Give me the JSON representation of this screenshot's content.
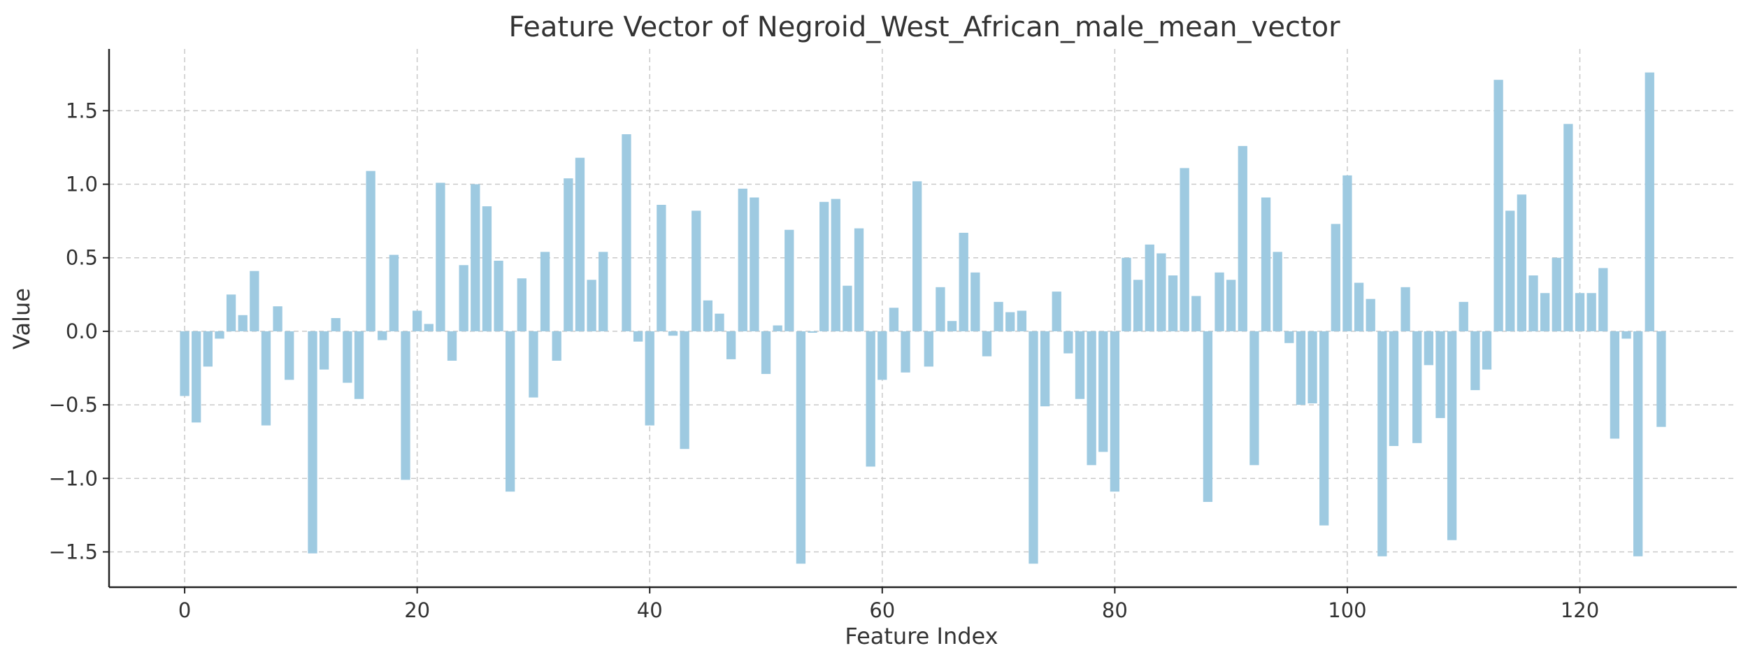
{
  "chart_data": {
    "type": "bar",
    "title": "Feature Vector of Negroid_West_African_male_mean_vector",
    "xlabel": "Feature Index",
    "ylabel": "Value",
    "xlim": [
      -6.5,
      133.5
    ],
    "ylim": [
      -1.74,
      1.92
    ],
    "xticks": [
      0,
      20,
      40,
      60,
      80,
      100,
      120
    ],
    "yticks": [
      -1.5,
      -1.0,
      -0.5,
      0.0,
      0.5,
      1.0,
      1.5
    ],
    "xtick_labels": [
      "0",
      "20",
      "40",
      "60",
      "80",
      "100",
      "120"
    ],
    "ytick_labels": [
      "−1.5",
      "−1.0",
      "−0.5",
      "0.0",
      "0.5",
      "1.0",
      "1.5"
    ],
    "grid": true,
    "bar_color": "#9ecae1",
    "x": [
      0,
      1,
      2,
      3,
      4,
      5,
      6,
      7,
      8,
      9,
      10,
      11,
      12,
      13,
      14,
      15,
      16,
      17,
      18,
      19,
      20,
      21,
      22,
      23,
      24,
      25,
      26,
      27,
      28,
      29,
      30,
      31,
      32,
      33,
      34,
      35,
      36,
      37,
      38,
      39,
      40,
      41,
      42,
      43,
      44,
      45,
      46,
      47,
      48,
      49,
      50,
      51,
      52,
      53,
      54,
      55,
      56,
      57,
      58,
      59,
      60,
      61,
      62,
      63,
      64,
      65,
      66,
      67,
      68,
      69,
      70,
      71,
      72,
      73,
      74,
      75,
      76,
      77,
      78,
      79,
      80,
      81,
      82,
      83,
      84,
      85,
      86,
      87,
      88,
      89,
      90,
      91,
      92,
      93,
      94,
      95,
      96,
      97,
      98,
      99,
      100,
      101,
      102,
      103,
      104,
      105,
      106,
      107,
      108,
      109,
      110,
      111,
      112,
      113,
      114,
      115,
      116,
      117,
      118,
      119,
      120,
      121,
      122,
      123,
      124,
      125,
      126,
      127
    ],
    "values": [
      -0.44,
      -0.62,
      -0.24,
      -0.05,
      0.25,
      0.11,
      0.41,
      -0.64,
      0.17,
      -0.33,
      0.0,
      -1.51,
      -0.26,
      0.09,
      -0.35,
      -0.46,
      1.09,
      -0.06,
      0.52,
      -1.01,
      0.14,
      0.05,
      1.01,
      -0.2,
      0.45,
      1.0,
      0.85,
      0.48,
      -1.09,
      0.36,
      -0.45,
      0.54,
      -0.2,
      1.04,
      1.18,
      0.35,
      0.54,
      0.0,
      1.34,
      -0.07,
      -0.64,
      0.86,
      -0.03,
      -0.8,
      0.82,
      0.21,
      0.12,
      -0.19,
      0.97,
      0.91,
      -0.29,
      0.04,
      0.69,
      -1.58,
      -0.01,
      0.88,
      0.9,
      0.31,
      0.7,
      -0.92,
      -0.33,
      0.16,
      -0.28,
      1.02,
      -0.24,
      0.3,
      0.07,
      0.67,
      0.4,
      -0.17,
      0.2,
      0.13,
      0.14,
      -1.58,
      -0.51,
      0.27,
      -0.15,
      -0.46,
      -0.91,
      -0.82,
      -1.09,
      0.5,
      0.35,
      0.59,
      0.53,
      0.38,
      1.11,
      0.24,
      -1.16,
      0.4,
      0.35,
      1.26,
      -0.91,
      0.91,
      0.54,
      -0.08,
      -0.5,
      -0.49,
      -1.32,
      0.73,
      1.06,
      0.33,
      0.22,
      -1.53,
      -0.78,
      0.3,
      -0.76,
      -0.23,
      -0.59,
      -1.42,
      0.2,
      -0.4,
      -0.26,
      1.71,
      0.82,
      0.93,
      0.38,
      0.26,
      0.5,
      1.41,
      0.26,
      0.26,
      0.43,
      -0.73,
      -0.05,
      -1.53,
      1.76,
      -0.65
    ]
  }
}
